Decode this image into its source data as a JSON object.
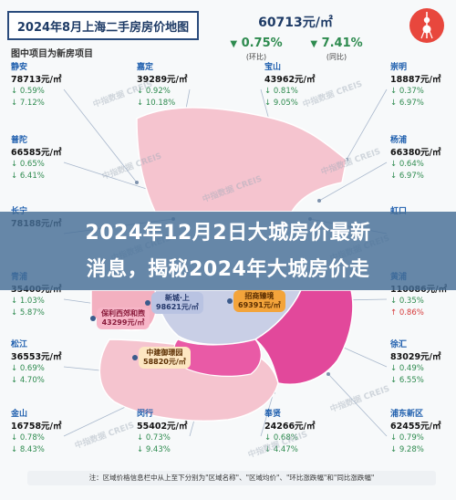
{
  "header": {
    "title": "2024年8月上海二手房房价地图",
    "subtitle": "图中项目为新房项目",
    "city_price": "60713元/㎡",
    "mom_change": "0.75%",
    "mom_label": "(环比)",
    "yoy_change": "7.41%",
    "yoy_label": "(同比)"
  },
  "banner": {
    "line1": "2024年12月2日大城房价最新",
    "line2": "消息，揭秘2024年大城房价走"
  },
  "chart_data": {
    "type": "table",
    "title": "2024年8月上海二手房房价地图",
    "columns": [
      "district",
      "price",
      "mom",
      "yoy"
    ],
    "rows": [
      {
        "district": "静安",
        "price": "78713元/㎡",
        "mom": "0.59%",
        "yoy": "7.12%"
      },
      {
        "district": "嘉定",
        "price": "39289元/㎡",
        "mom": "0.92%",
        "yoy": "10.18%"
      },
      {
        "district": "宝山",
        "price": "43962元/㎡",
        "mom": "0.81%",
        "yoy": "9.05%"
      },
      {
        "district": "崇明",
        "price": "18887元/㎡",
        "mom": "0.37%",
        "yoy": "6.97%"
      },
      {
        "district": "普陀",
        "price": "66585元/㎡",
        "mom": "0.65%",
        "yoy": "6.41%"
      },
      {
        "district": "杨浦",
        "price": "66380元/㎡",
        "mom": "0.64%",
        "yoy": "6.97%"
      },
      {
        "district": "长宁",
        "price": "78188元/㎡",
        "mom": "",
        "yoy": ""
      },
      {
        "district": "虹口",
        "price": "",
        "mom": "",
        "yoy": ""
      },
      {
        "district": "青浦",
        "price": "35400元/㎡",
        "mom": "1.03%",
        "yoy": "5.87%"
      },
      {
        "district": "黄浦",
        "price": "110086元/㎡",
        "mom": "0.35%",
        "yoy": "0.86%"
      },
      {
        "district": "松江",
        "price": "36553元/㎡",
        "mom": "0.69%",
        "yoy": "4.70%"
      },
      {
        "district": "徐汇",
        "price": "83029元/㎡",
        "mom": "0.49%",
        "yoy": "6.55%"
      },
      {
        "district": "金山",
        "price": "16758元/㎡",
        "mom": "0.78%",
        "yoy": "8.43%"
      },
      {
        "district": "闵行",
        "price": "55402元/㎡",
        "mom": "0.73%",
        "yoy": "9.43%"
      },
      {
        "district": "奉贤",
        "price": "24266元/㎡",
        "mom": "0.68%",
        "yoy": "4.47%"
      },
      {
        "district": "浦东新区",
        "price": "62455元/㎡",
        "mom": "0.79%",
        "yoy": "9.28%"
      }
    ]
  },
  "projects": [
    {
      "name": "保利西郊和煦",
      "price": "43299元/㎡"
    },
    {
      "name": "新城·上",
      "price": "98621元/㎡"
    },
    {
      "name": "招商臻境",
      "price": "69391元/㎡"
    },
    {
      "name": "中建御璟园",
      "price": "58820元/㎡"
    }
  ],
  "footer": "注：区域价格信息栏中从上至下分别为\"区域名称\"、\"区域均价\"、\"环比涨跌幅\"和\"同比涨跌幅\"",
  "watermark": "中指数据 CREIS",
  "colors": {
    "down": "#2e8b4f",
    "up": "#d63b3b",
    "district_name": "#1f5fae",
    "map_fill": "#f2b8c6",
    "banner": "#466e96"
  }
}
